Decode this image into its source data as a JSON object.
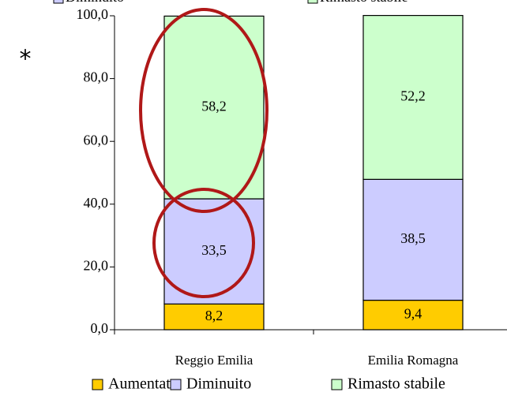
{
  "chart_data": {
    "type": "stacked_bar",
    "annotation": "*",
    "categories": [
      "Reggio Emilia",
      "Emilia Romagna"
    ],
    "series": [
      {
        "name": "Aumentato",
        "color": "#ffcc00",
        "values": [
          8.2,
          9.4
        ],
        "value_labels": [
          "8,2",
          "9,4"
        ]
      },
      {
        "name": "Diminuito",
        "color": "#ccccff",
        "values": [
          33.5,
          38.5
        ],
        "value_labels": [
          "33,5",
          "38,5"
        ]
      },
      {
        "name": "Rimasto stabile",
        "color": "#ccffcc",
        "values": [
          58.2,
          52.2
        ],
        "value_labels": [
          "58,2",
          "52,2"
        ]
      }
    ],
    "ylim": [
      0,
      100
    ],
    "yticks": [
      {
        "value": 0,
        "label": "0,0"
      },
      {
        "value": 20,
        "label": "20,0"
      },
      {
        "value": 40,
        "label": "40,0"
      },
      {
        "value": 60,
        "label": "60,0"
      },
      {
        "value": 80,
        "label": "80,0"
      },
      {
        "value": 100,
        "label": "100,0"
      }
    ],
    "legend": "bottom"
  }
}
